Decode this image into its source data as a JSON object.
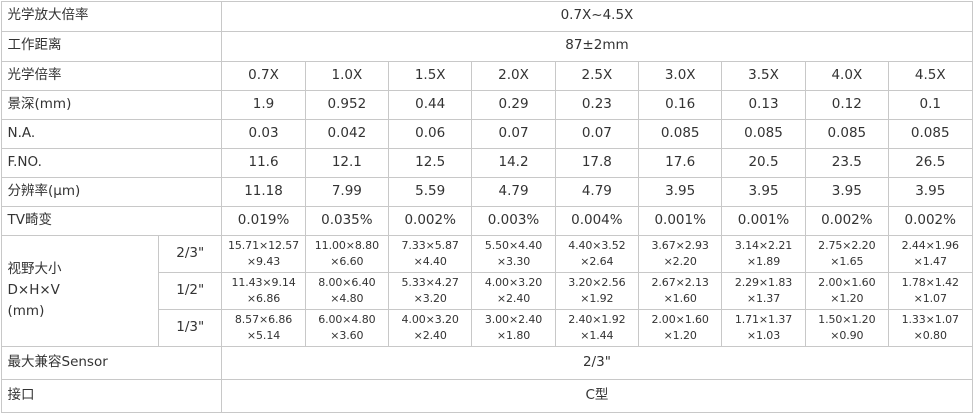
{
  "rows": {
    "magnification_range": {
      "label": "光学放大倍率",
      "value": "0.7X~4.5X"
    },
    "working_distance": {
      "label": "工作距离",
      "value": "87±2mm"
    },
    "magnification": {
      "label": "光学倍率",
      "values": [
        "0.7X",
        "1.0X",
        "1.5X",
        "2.0X",
        "2.5X",
        "3.0X",
        "3.5X",
        "4.0X",
        "4.5X"
      ]
    },
    "depth_of_field": {
      "label": "景深(mm)",
      "values": [
        "1.9",
        "0.952",
        "0.44",
        "0.29",
        "0.23",
        "0.16",
        "0.13",
        "0.12",
        "0.1"
      ]
    },
    "na": {
      "label": "N.A.",
      "values": [
        "0.03",
        "0.042",
        "0.06",
        "0.07",
        "0.07",
        "0.085",
        "0.085",
        "0.085",
        "0.085"
      ]
    },
    "fno": {
      "label": "F.NO.",
      "values": [
        "11.6",
        "12.1",
        "12.5",
        "14.2",
        "17.8",
        "17.6",
        "20.5",
        "23.5",
        "26.5"
      ]
    },
    "resolution": {
      "label": "分辨率(μm)",
      "values": [
        "11.18",
        "7.99",
        "5.59",
        "4.79",
        "4.79",
        "3.95",
        "3.95",
        "3.95",
        "3.95"
      ]
    },
    "tv_distortion": {
      "label": "TV畸变",
      "values": [
        "0.019%",
        "0.035%",
        "0.002%",
        "0.003%",
        "0.004%",
        "0.001%",
        "0.001%",
        "0.002%",
        "0.002%"
      ]
    },
    "field_of_view": {
      "label_line1": "视野大小",
      "label_line2": "D×H×V",
      "label_line3": "(mm)",
      "sensors": [
        {
          "size": "2/3\"",
          "cells": [
            [
              "15.71×12.57",
              "×9.43"
            ],
            [
              "11.00×8.80",
              "×6.60"
            ],
            [
              "7.33×5.87",
              "×4.40"
            ],
            [
              "5.50×4.40",
              "×3.30"
            ],
            [
              "4.40×3.52",
              "×2.64"
            ],
            [
              "3.67×2.93",
              "×2.20"
            ],
            [
              "3.14×2.21",
              "×1.89"
            ],
            [
              "2.75×2.20",
              "×1.65"
            ],
            [
              "2.44×1.96",
              "×1.47"
            ]
          ]
        },
        {
          "size": "1/2\"",
          "cells": [
            [
              "11.43×9.14",
              "×6.86"
            ],
            [
              "8.00×6.40",
              "×4.80"
            ],
            [
              "5.33×4.27",
              "×3.20"
            ],
            [
              "4.00×3.20",
              "×2.40"
            ],
            [
              "3.20×2.56",
              "×1.92"
            ],
            [
              "2.67×2.13",
              "×1.60"
            ],
            [
              "2.29×1.83",
              "×1.37"
            ],
            [
              "2.00×1.60",
              "×1.20"
            ],
            [
              "1.78×1.42",
              "×1.07"
            ]
          ]
        },
        {
          "size": "1/3\"",
          "cells": [
            [
              "8.57×6.86",
              "×5.14"
            ],
            [
              "6.00×4.80",
              "×3.60"
            ],
            [
              "4.00×3.20",
              "×2.40"
            ],
            [
              "3.00×2.40",
              "×1.80"
            ],
            [
              "2.40×1.92",
              "×1.44"
            ],
            [
              "2.00×1.60",
              "×1.20"
            ],
            [
              "1.71×1.37",
              "×1.03"
            ],
            [
              "1.50×1.20",
              "×0.90"
            ],
            [
              "1.33×1.07",
              "×0.80"
            ]
          ]
        }
      ]
    },
    "max_sensor": {
      "label": "最大兼容Sensor",
      "value": "2/3\""
    },
    "mount": {
      "label": "接口",
      "value": "C型"
    }
  }
}
